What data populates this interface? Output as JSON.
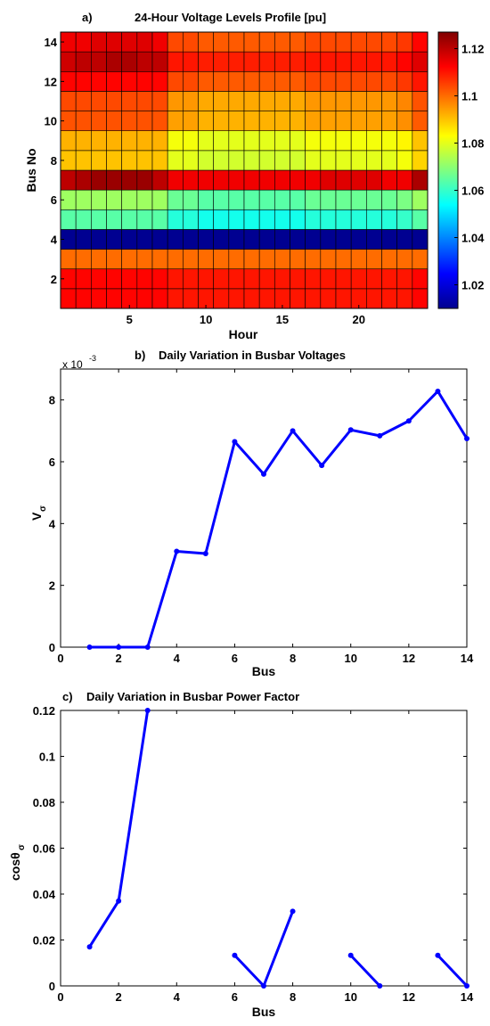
{
  "chart_data": [
    {
      "id": "a",
      "type": "heatmap",
      "panel_label": "a)",
      "title": "24-Hour Voltage Levels Profile [pu]",
      "xlabel": "Hour",
      "ylabel": "Bus No",
      "x_ticks": [
        "5",
        "10",
        "15",
        "20"
      ],
      "x_tick_values": [
        5,
        10,
        15,
        20
      ],
      "y_ticks": [
        "2",
        "4",
        "6",
        "8",
        "10",
        "12",
        "14"
      ],
      "y_tick_values": [
        2,
        4,
        6,
        8,
        10,
        12,
        14
      ],
      "xlim": [
        0.5,
        24.5
      ],
      "ylim": [
        0.5,
        14.5
      ],
      "hours": [
        1,
        2,
        3,
        4,
        5,
        6,
        7,
        8,
        9,
        10,
        11,
        12,
        13,
        14,
        15,
        16,
        17,
        18,
        19,
        20,
        21,
        22,
        23,
        24
      ],
      "colorbar": {
        "range": [
          1.01,
          1.127
        ],
        "ticks": [
          "1.02",
          "1.04",
          "1.06",
          "1.08",
          "1.1",
          "1.12"
        ],
        "tick_values": [
          1.02,
          1.04,
          1.06,
          1.08,
          1.1,
          1.12
        ],
        "colormap": "jet"
      },
      "bus_rows": [
        {
          "bus": 1,
          "values": [
            1.112,
            1.112,
            1.112,
            1.112,
            1.112,
            1.112,
            1.112,
            1.11,
            1.11,
            1.11,
            1.11,
            1.11,
            1.11,
            1.11,
            1.11,
            1.11,
            1.11,
            1.11,
            1.11,
            1.11,
            1.11,
            1.11,
            1.11,
            1.112
          ]
        },
        {
          "bus": 2,
          "values": [
            1.112,
            1.112,
            1.112,
            1.112,
            1.112,
            1.112,
            1.112,
            1.11,
            1.11,
            1.11,
            1.11,
            1.11,
            1.11,
            1.11,
            1.11,
            1.11,
            1.11,
            1.11,
            1.11,
            1.11,
            1.11,
            1.11,
            1.11,
            1.112
          ]
        },
        {
          "bus": 3,
          "values": [
            1.1,
            1.1,
            1.1,
            1.1,
            1.1,
            1.1,
            1.1,
            1.1,
            1.1,
            1.1,
            1.1,
            1.1,
            1.1,
            1.1,
            1.1,
            1.1,
            1.1,
            1.1,
            1.1,
            1.1,
            1.1,
            1.1,
            1.1,
            1.1
          ]
        },
        {
          "bus": 4,
          "values": [
            1.012,
            1.012,
            1.012,
            1.012,
            1.012,
            1.012,
            1.012,
            1.012,
            1.012,
            1.012,
            1.012,
            1.012,
            1.012,
            1.012,
            1.012,
            1.012,
            1.012,
            1.012,
            1.012,
            1.012,
            1.012,
            1.012,
            1.012,
            1.012
          ]
        },
        {
          "bus": 5,
          "values": [
            1.064,
            1.064,
            1.064,
            1.064,
            1.064,
            1.064,
            1.064,
            1.058,
            1.058,
            1.056,
            1.056,
            1.056,
            1.056,
            1.056,
            1.056,
            1.056,
            1.058,
            1.058,
            1.058,
            1.058,
            1.058,
            1.058,
            1.06,
            1.064
          ]
        },
        {
          "bus": 6,
          "values": [
            1.072,
            1.072,
            1.072,
            1.072,
            1.072,
            1.072,
            1.072,
            1.066,
            1.066,
            1.064,
            1.064,
            1.064,
            1.064,
            1.064,
            1.064,
            1.064,
            1.066,
            1.066,
            1.066,
            1.066,
            1.066,
            1.066,
            1.068,
            1.072
          ]
        },
        {
          "bus": 7,
          "values": [
            1.12,
            1.122,
            1.124,
            1.124,
            1.124,
            1.124,
            1.12,
            1.114,
            1.114,
            1.114,
            1.114,
            1.114,
            1.114,
            1.114,
            1.114,
            1.114,
            1.114,
            1.116,
            1.116,
            1.116,
            1.116,
            1.114,
            1.114,
            1.122
          ]
        },
        {
          "bus": 8,
          "values": [
            1.09,
            1.09,
            1.09,
            1.09,
            1.09,
            1.09,
            1.09,
            1.08,
            1.08,
            1.078,
            1.078,
            1.078,
            1.078,
            1.078,
            1.078,
            1.078,
            1.08,
            1.08,
            1.08,
            1.08,
            1.08,
            1.08,
            1.082,
            1.088
          ]
        },
        {
          "bus": 9,
          "values": [
            1.092,
            1.092,
            1.092,
            1.092,
            1.092,
            1.092,
            1.092,
            1.082,
            1.082,
            1.08,
            1.08,
            1.08,
            1.08,
            1.08,
            1.08,
            1.08,
            1.082,
            1.082,
            1.082,
            1.082,
            1.082,
            1.082,
            1.084,
            1.09
          ]
        },
        {
          "bus": 10,
          "values": [
            1.103,
            1.103,
            1.103,
            1.103,
            1.103,
            1.103,
            1.103,
            1.094,
            1.094,
            1.092,
            1.092,
            1.092,
            1.092,
            1.092,
            1.092,
            1.092,
            1.094,
            1.094,
            1.094,
            1.094,
            1.094,
            1.094,
            1.096,
            1.102
          ]
        },
        {
          "bus": 11,
          "values": [
            1.104,
            1.104,
            1.104,
            1.104,
            1.104,
            1.104,
            1.104,
            1.095,
            1.095,
            1.093,
            1.093,
            1.093,
            1.093,
            1.093,
            1.093,
            1.093,
            1.095,
            1.095,
            1.095,
            1.095,
            1.095,
            1.095,
            1.097,
            1.103
          ]
        },
        {
          "bus": 12,
          "values": [
            1.112,
            1.112,
            1.112,
            1.112,
            1.112,
            1.112,
            1.112,
            1.104,
            1.104,
            1.102,
            1.102,
            1.102,
            1.102,
            1.102,
            1.102,
            1.102,
            1.104,
            1.104,
            1.104,
            1.104,
            1.104,
            1.104,
            1.106,
            1.11
          ]
        },
        {
          "bus": 13,
          "values": [
            1.118,
            1.12,
            1.12,
            1.122,
            1.122,
            1.12,
            1.12,
            1.11,
            1.11,
            1.109,
            1.109,
            1.109,
            1.109,
            1.109,
            1.109,
            1.109,
            1.11,
            1.11,
            1.11,
            1.11,
            1.11,
            1.11,
            1.112,
            1.116
          ]
        },
        {
          "bus": 14,
          "values": [
            1.114,
            1.114,
            1.116,
            1.116,
            1.116,
            1.116,
            1.114,
            1.104,
            1.104,
            1.102,
            1.102,
            1.102,
            1.102,
            1.102,
            1.102,
            1.102,
            1.104,
            1.104,
            1.104,
            1.104,
            1.104,
            1.104,
            1.106,
            1.112
          ]
        }
      ]
    },
    {
      "id": "b",
      "type": "line",
      "panel_label": "b)",
      "title": "Daily Variation in Busbar Voltages",
      "xlabel": "Bus",
      "ylabel": "V",
      "ylabel_subscript": "σ",
      "y_exponent_base": "x 10",
      "y_exponent_power": "-3",
      "x_ticks": [
        "0",
        "2",
        "4",
        "6",
        "8",
        "10",
        "12",
        "14"
      ],
      "x_tick_values": [
        0,
        2,
        4,
        6,
        8,
        10,
        12,
        14
      ],
      "y_ticks": [
        "0",
        "2",
        "4",
        "6",
        "8"
      ],
      "y_tick_values": [
        0,
        2,
        4,
        6,
        8
      ],
      "xlim": [
        0,
        14
      ],
      "ylim": [
        0,
        9
      ],
      "color": "#0000ff",
      "x": [
        1,
        2,
        3,
        4,
        5,
        6,
        7,
        8,
        9,
        10,
        11,
        12,
        13,
        14
      ],
      "y": [
        0,
        0,
        0,
        3.1,
        3.03,
        6.65,
        5.6,
        7.0,
        5.88,
        7.03,
        6.84,
        7.32,
        8.28,
        6.75
      ]
    },
    {
      "id": "c",
      "type": "line",
      "panel_label": "c)",
      "title": "Daily Variation in Busbar Power Factor",
      "xlabel": "Bus",
      "ylabel": "cosθ",
      "ylabel_subscript": "σ",
      "x_ticks": [
        "0",
        "2",
        "4",
        "6",
        "8",
        "10",
        "12",
        "14"
      ],
      "x_tick_values": [
        0,
        2,
        4,
        6,
        8,
        10,
        12,
        14
      ],
      "y_ticks": [
        "0",
        "0.02",
        "0.04",
        "0.06",
        "0.08",
        "0.1",
        "0.12"
      ],
      "y_tick_values": [
        0,
        0.02,
        0.04,
        0.06,
        0.08,
        0.1,
        0.12
      ],
      "xlim": [
        0,
        14
      ],
      "ylim": [
        0,
        0.12
      ],
      "color": "#0000ff",
      "x": [
        1,
        2,
        3,
        4,
        5,
        6,
        7,
        8,
        9,
        10,
        11,
        12,
        13,
        14
      ],
      "y": [
        0.017,
        0.037,
        0.12,
        null,
        null,
        0.0133,
        0,
        0.0325,
        null,
        0.0133,
        0,
        null,
        0.0133,
        0
      ]
    }
  ]
}
